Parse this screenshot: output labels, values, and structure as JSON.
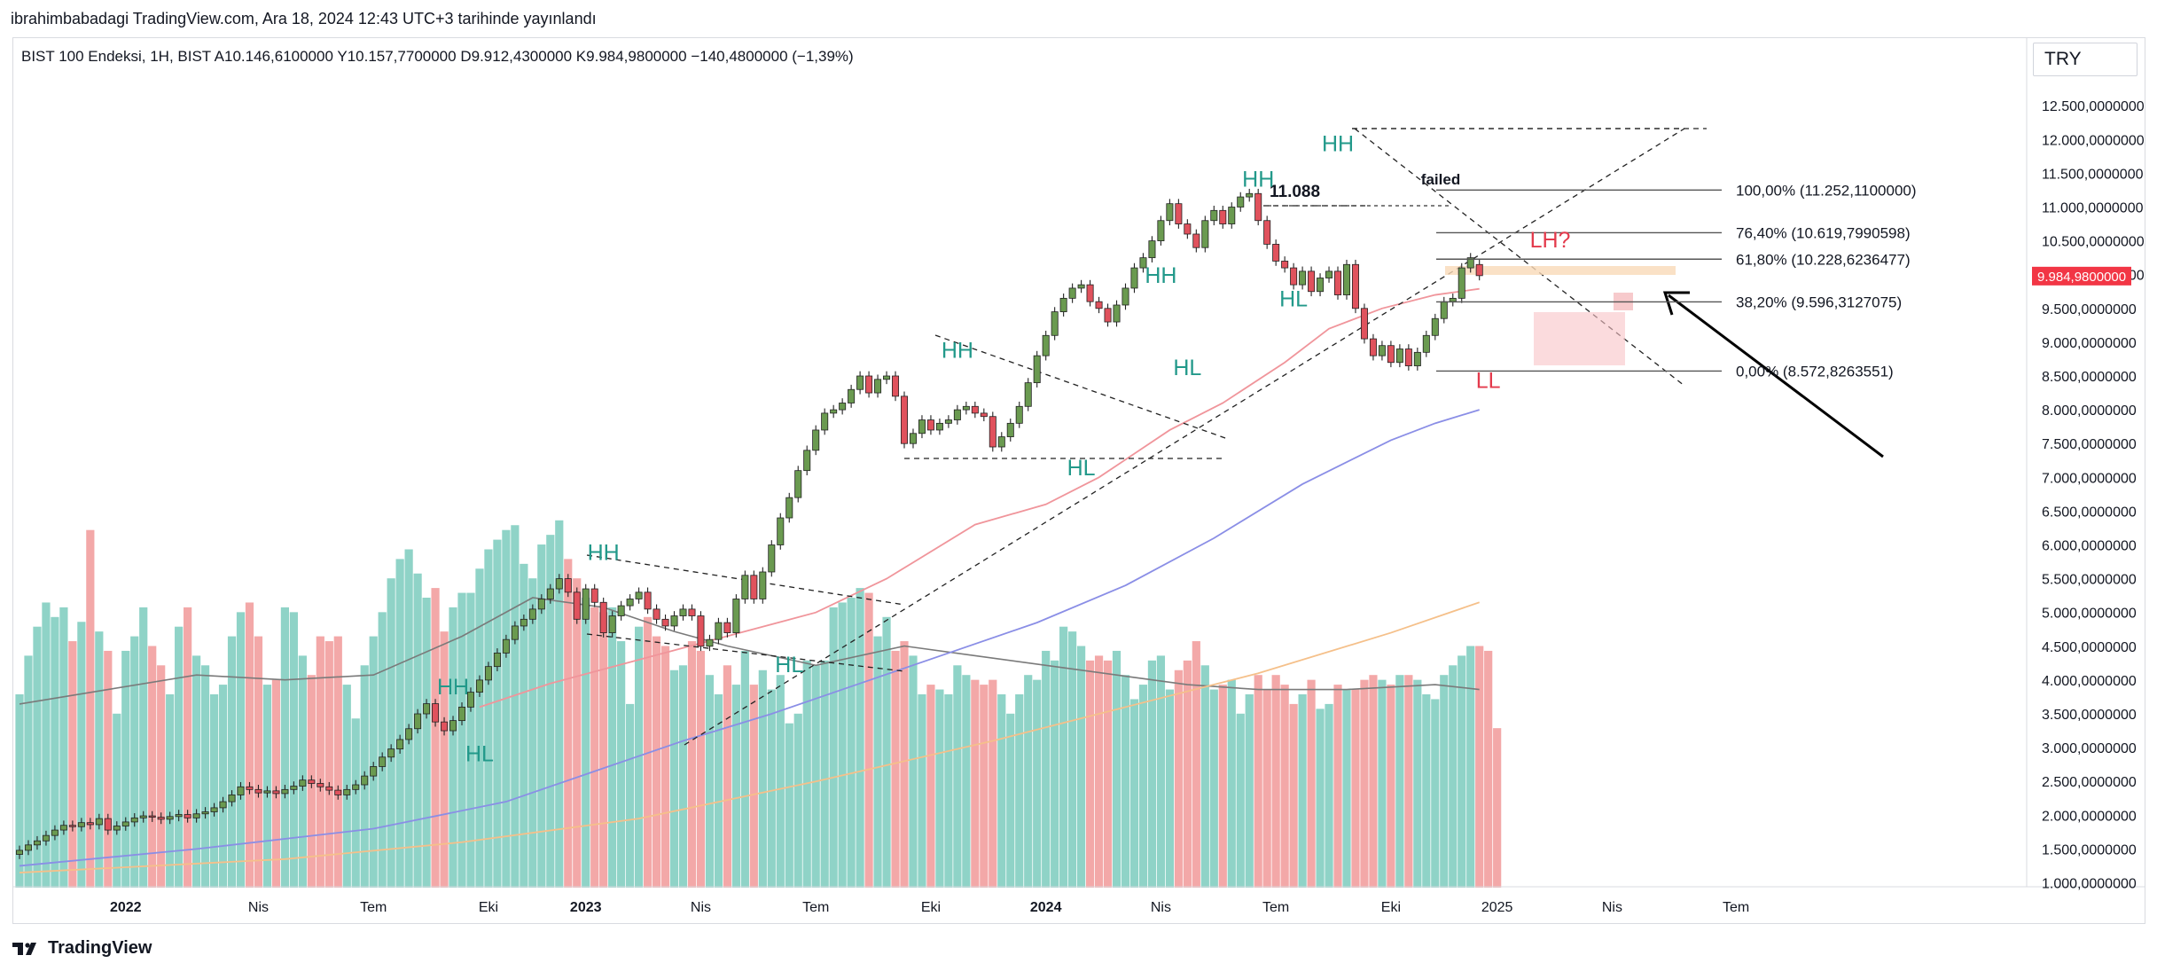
{
  "header": {
    "published": "ibrahimbabadagi TradingView.com, Ara 18, 2024 12:43 UTC+3 tarihinde yayınlandı"
  },
  "legend": {
    "symbol": "BIST 100 Endeksi, 1H, BIST",
    "open_label": "A",
    "open": "10.146,6100000",
    "high_label": "Y",
    "high": "10.157,7700000",
    "low_label": "D",
    "low": "9.912,4300000",
    "close_label": "K",
    "close": "9.984,9800000",
    "change": "−140,4800000 (−1,39%)"
  },
  "currency": "TRY",
  "footer": {
    "brand": "TradingView"
  },
  "colors": {
    "up": "#6a9a50",
    "down": "#e0525d",
    "vol_up": "#8fd3c7",
    "vol_down": "#f3a8a8",
    "ma_red": "#f0959b",
    "ma_blue": "#8a8ee6",
    "ma_orange": "#f5c08a",
    "vol_ma": "#7a7a7a",
    "teal_label": "#22998a",
    "red_label": "#e33a4c",
    "price_tag": "#f23645"
  },
  "chart_data": {
    "type": "candlestick",
    "symbol": "BIST 100 Endeksi",
    "interval": "1H",
    "ylim": [
      1000,
      12900
    ],
    "y_ticks": [
      "12.500,0000000",
      "12.000,0000000",
      "11.500,0000000",
      "11.000,0000000",
      "10.500,0000000",
      "10.000,0000000",
      "9.500,0000000",
      "9.000,0000000",
      "8.500,0000000",
      "8.000,0000000",
      "7.500,0000000",
      "7.000,0000000",
      "6.500,0000000",
      "6.000,0000000",
      "5.500,0000000",
      "5.000,0000000",
      "4.500,0000000",
      "4.000,0000000",
      "3.500,0000000",
      "3.000,0000000",
      "2.500,0000000",
      "2.000,0000000",
      "1.500,0000000",
      "1.000,0000000"
    ],
    "y_tick_values": [
      12500,
      12000,
      11500,
      11000,
      10500,
      10000,
      9500,
      9000,
      8500,
      8000,
      7500,
      7000,
      6500,
      6000,
      5500,
      5000,
      4500,
      4000,
      3500,
      3000,
      2500,
      2000,
      1500,
      1000
    ],
    "x_ticks": [
      "2022",
      "Nis",
      "Tem",
      "Eki",
      "2023",
      "Nis",
      "Tem",
      "Eki",
      "2024",
      "Nis",
      "Tem",
      "Eki",
      "2025",
      "Nis",
      "Tem"
    ],
    "x_tick_bold": [
      true,
      false,
      false,
      false,
      true,
      false,
      false,
      false,
      true,
      false,
      false,
      false,
      false,
      false,
      false
    ],
    "x_tick_weeks": [
      12,
      27,
      40,
      53,
      64,
      77,
      90,
      103,
      116,
      129,
      142,
      155,
      167,
      180,
      194
    ],
    "last_price": "9.984,9800000",
    "last_price_value": 9985,
    "candles": [
      [
        1420,
        1480
      ],
      [
        1480,
        1560
      ],
      [
        1560,
        1620
      ],
      [
        1620,
        1700
      ],
      [
        1700,
        1780
      ],
      [
        1780,
        1850
      ],
      [
        1850,
        1830
      ],
      [
        1830,
        1890
      ],
      [
        1890,
        1860
      ],
      [
        1860,
        1950
      ],
      [
        1950,
        1780
      ],
      [
        1780,
        1840
      ],
      [
        1840,
        1900
      ],
      [
        1900,
        1960
      ],
      [
        1960,
        1990
      ],
      [
        1990,
        1970
      ],
      [
        1970,
        1940
      ],
      [
        1940,
        1980
      ],
      [
        1980,
        2010
      ],
      [
        2010,
        1960
      ],
      [
        1960,
        2020
      ],
      [
        2020,
        2050
      ],
      [
        2050,
        2110
      ],
      [
        2110,
        2200
      ],
      [
        2200,
        2300
      ],
      [
        2300,
        2420
      ],
      [
        2420,
        2380
      ],
      [
        2380,
        2330
      ],
      [
        2330,
        2360
      ],
      [
        2360,
        2320
      ],
      [
        2320,
        2380
      ],
      [
        2380,
        2430
      ],
      [
        2430,
        2520
      ],
      [
        2520,
        2470
      ],
      [
        2470,
        2420
      ],
      [
        2420,
        2370
      ],
      [
        2370,
        2300
      ],
      [
        2300,
        2380
      ],
      [
        2380,
        2450
      ],
      [
        2450,
        2580
      ],
      [
        2580,
        2720
      ],
      [
        2720,
        2860
      ],
      [
        2860,
        2980
      ],
      [
        2980,
        3120
      ],
      [
        3120,
        3280
      ],
      [
        3280,
        3500
      ],
      [
        3500,
        3650
      ],
      [
        3650,
        3380
      ],
      [
        3380,
        3250
      ],
      [
        3250,
        3400
      ],
      [
        3400,
        3600
      ],
      [
        3600,
        3820
      ],
      [
        3820,
        4000
      ],
      [
        4000,
        4200
      ],
      [
        4200,
        4400
      ],
      [
        4400,
        4600
      ],
      [
        4600,
        4800
      ],
      [
        4800,
        4900
      ],
      [
        4900,
        5050
      ],
      [
        5050,
        5200
      ],
      [
        5200,
        5350
      ],
      [
        5350,
        5500
      ],
      [
        5500,
        5300
      ],
      [
        5300,
        4900
      ],
      [
        4900,
        5350
      ],
      [
        5350,
        5150
      ],
      [
        5150,
        4700
      ],
      [
        4700,
        4950
      ],
      [
        4950,
        5100
      ],
      [
        5100,
        5200
      ],
      [
        5200,
        5300
      ],
      [
        5300,
        5050
      ],
      [
        5050,
        4900
      ],
      [
        4900,
        4800
      ],
      [
        4800,
        4950
      ],
      [
        4950,
        5050
      ],
      [
        5050,
        4950
      ],
      [
        4950,
        4500
      ],
      [
        4500,
        4600
      ],
      [
        4600,
        4850
      ],
      [
        4850,
        4700
      ],
      [
        4700,
        5200
      ],
      [
        5200,
        5550
      ],
      [
        5550,
        5200
      ],
      [
        5200,
        5600
      ],
      [
        5600,
        6000
      ],
      [
        6000,
        6400
      ],
      [
        6400,
        6700
      ],
      [
        6700,
        7100
      ],
      [
        7100,
        7400
      ],
      [
        7400,
        7700
      ],
      [
        7700,
        7950
      ],
      [
        7950,
        8000
      ],
      [
        8000,
        8100
      ],
      [
        8100,
        8300
      ],
      [
        8300,
        8500
      ],
      [
        8500,
        8250
      ],
      [
        8250,
        8450
      ],
      [
        8450,
        8500
      ],
      [
        8500,
        8200
      ],
      [
        8200,
        7500
      ],
      [
        7500,
        7650
      ],
      [
        7650,
        7850
      ],
      [
        7850,
        7700
      ],
      [
        7700,
        7800
      ],
      [
        7800,
        7850
      ],
      [
        7850,
        8000
      ],
      [
        8000,
        8050
      ],
      [
        8050,
        7950
      ],
      [
        7950,
        7900
      ],
      [
        7900,
        7450
      ],
      [
        7450,
        7600
      ],
      [
        7600,
        7800
      ],
      [
        7800,
        8050
      ],
      [
        8050,
        8400
      ],
      [
        8400,
        8800
      ],
      [
        8800,
        9100
      ],
      [
        9100,
        9450
      ],
      [
        9450,
        9650
      ],
      [
        9650,
        9800
      ],
      [
        9800,
        9850
      ],
      [
        9850,
        9600
      ],
      [
        9600,
        9500
      ],
      [
        9500,
        9300
      ],
      [
        9300,
        9550
      ],
      [
        9550,
        9800
      ],
      [
        9800,
        10100
      ],
      [
        10100,
        10250
      ],
      [
        10250,
        10500
      ],
      [
        10500,
        10800
      ],
      [
        10800,
        11050
      ],
      [
        11050,
        10750
      ],
      [
        10750,
        10600
      ],
      [
        10600,
        10400
      ],
      [
        10400,
        10800
      ],
      [
        10800,
        10950
      ],
      [
        10950,
        10750
      ],
      [
        10750,
        11000
      ],
      [
        11000,
        11150
      ],
      [
        11150,
        11200
      ],
      [
        11200,
        10800
      ],
      [
        10800,
        10450
      ],
      [
        10450,
        10200
      ],
      [
        10200,
        10100
      ],
      [
        10100,
        9850
      ],
      [
        9850,
        10050
      ],
      [
        10050,
        9750
      ],
      [
        9750,
        9950
      ],
      [
        9950,
        10050
      ],
      [
        10050,
        9700
      ],
      [
        9700,
        10150
      ],
      [
        10150,
        9500
      ],
      [
        9500,
        9050
      ],
      [
        9050,
        8800
      ],
      [
        8800,
        8950
      ],
      [
        8950,
        8700
      ],
      [
        8700,
        8900
      ],
      [
        8900,
        8650
      ],
      [
        8650,
        8850
      ],
      [
        8850,
        9100
      ],
      [
        9100,
        9350
      ],
      [
        9350,
        9600
      ],
      [
        9600,
        9650
      ],
      [
        9650,
        10100
      ],
      [
        10100,
        10250
      ],
      [
        10150,
        9985
      ]
    ],
    "volume_values": [
      2000,
      2400,
      2700,
      2950,
      2800,
      2900,
      2550,
      2750,
      3700,
      2650,
      2450,
      1800,
      2450,
      2600,
      2900,
      2500,
      2300,
      2000,
      2700,
      2900,
      2400,
      2300,
      2000,
      2100,
      2600,
      2850,
      2950,
      2600,
      2100,
      2150,
      2900,
      2850,
      2400,
      2200,
      2600,
      2550,
      2600,
      2100,
      1750,
      2300,
      2600,
      2850,
      3200,
      3400,
      3500,
      3250,
      3000,
      3100,
      2650,
      2900,
      3050,
      3050,
      3300,
      3500,
      3600,
      3700,
      3750,
      3350,
      3200,
      3550,
      3650,
      3800,
      3400,
      3200,
      3000,
      2900,
      2850,
      2900,
      2550,
      1900,
      2700,
      2800,
      2600,
      2500,
      2250,
      2300,
      2550,
      2450,
      2200,
      2000,
      2300,
      2100,
      2450,
      2100,
      2250,
      2050,
      2200,
      1700,
      1800,
      2350,
      2300,
      2350,
      2900,
      2950,
      3000,
      3100,
      3050,
      2600,
      2800,
      2450,
      2550,
      2400,
      2000,
      2100,
      2050,
      2000,
      2300,
      2200,
      2150,
      2100,
      2150,
      2000,
      1800,
      2000,
      2200,
      2150,
      2450,
      2350,
      2700,
      2650,
      2500,
      2350,
      2400,
      2350,
      2450,
      2200,
      1950,
      2100,
      2350,
      2400,
      2050,
      2250,
      2350,
      2550,
      2300,
      2050,
      2100,
      2150,
      1800,
      2000,
      2200,
      2050,
      2200,
      2100,
      1900,
      2000,
      2150,
      1850,
      1900,
      2100,
      2050,
      2050,
      2150,
      2200,
      2150,
      2100,
      2200,
      2200,
      2150,
      2000,
      1950,
      2200,
      2300,
      2400,
      2500,
      2500,
      2450,
      1650
    ],
    "ma_red": [
      [
        52,
        3600
      ],
      [
        60,
        3950
      ],
      [
        70,
        4300
      ],
      [
        80,
        4650
      ],
      [
        90,
        5000
      ],
      [
        98,
        5500
      ],
      [
        108,
        6300
      ],
      [
        116,
        6600
      ],
      [
        122,
        7000
      ],
      [
        130,
        7700
      ],
      [
        136,
        8100
      ],
      [
        143,
        8700
      ],
      [
        148,
        9200
      ],
      [
        154,
        9500
      ],
      [
        160,
        9700
      ],
      [
        165,
        9790
      ]
    ],
    "ma_blue": [
      [
        0,
        1250
      ],
      [
        20,
        1500
      ],
      [
        40,
        1800
      ],
      [
        55,
        2200
      ],
      [
        65,
        2650
      ],
      [
        75,
        3100
      ],
      [
        85,
        3500
      ],
      [
        95,
        3950
      ],
      [
        105,
        4400
      ],
      [
        115,
        4850
      ],
      [
        125,
        5400
      ],
      [
        135,
        6100
      ],
      [
        145,
        6900
      ],
      [
        155,
        7550
      ],
      [
        160,
        7800
      ],
      [
        165,
        8000
      ]
    ],
    "ma_orange": [
      [
        0,
        1150
      ],
      [
        30,
        1350
      ],
      [
        50,
        1600
      ],
      [
        70,
        1950
      ],
      [
        90,
        2500
      ],
      [
        110,
        3100
      ],
      [
        125,
        3600
      ],
      [
        140,
        4100
      ],
      [
        155,
        4700
      ],
      [
        165,
        5150
      ]
    ],
    "vol_ma": [
      [
        0,
        1900
      ],
      [
        10,
        2050
      ],
      [
        20,
        2200
      ],
      [
        30,
        2150
      ],
      [
        40,
        2200
      ],
      [
        50,
        2600
      ],
      [
        58,
        3000
      ],
      [
        66,
        2900
      ],
      [
        74,
        2650
      ],
      [
        80,
        2500
      ],
      [
        90,
        2300
      ],
      [
        100,
        2500
      ],
      [
        108,
        2400
      ],
      [
        116,
        2300
      ],
      [
        124,
        2200
      ],
      [
        132,
        2100
      ],
      [
        140,
        2050
      ],
      [
        150,
        2050
      ],
      [
        160,
        2100
      ],
      [
        165,
        2050
      ]
    ],
    "fibonacci": [
      {
        "label": "100,00% (11.252,1100000)",
        "value": 11252
      },
      {
        "label": "76,40% (10.619,7990598)",
        "value": 10620
      },
      {
        "label": "61,80% (10.228,6236477)",
        "value": 10229
      },
      {
        "label": "38,20% (9.596,3127075)",
        "value": 9596
      },
      {
        "label": "0,00% (8.572,8263551)",
        "value": 8573
      }
    ],
    "level_label": "11.088",
    "annotations": [
      {
        "text": "HH",
        "color": "teal",
        "week": 49,
        "value": 3790
      },
      {
        "text": "HL",
        "color": "teal",
        "week": 52,
        "value": 2800
      },
      {
        "text": "HH",
        "color": "teal",
        "week": 66,
        "value": 5780
      },
      {
        "text": "HL",
        "color": "teal",
        "week": 87,
        "value": 4120
      },
      {
        "text": "HH",
        "color": "teal",
        "week": 106,
        "value": 8770
      },
      {
        "text": "HL",
        "color": "teal",
        "week": 120,
        "value": 7030
      },
      {
        "text": "HH",
        "color": "teal",
        "week": 129,
        "value": 9880
      },
      {
        "text": "HL",
        "color": "teal",
        "week": 132,
        "value": 8510
      },
      {
        "text": "HH",
        "color": "teal",
        "week": 140,
        "value": 11300
      },
      {
        "text": "HL",
        "color": "teal",
        "week": 144,
        "value": 9530
      },
      {
        "text": "HH",
        "color": "teal",
        "week": 149,
        "value": 11830
      },
      {
        "text": "LL",
        "color": "red",
        "week": 166,
        "value": 8320
      },
      {
        "text": "LH?",
        "color": "red",
        "week": 173,
        "value": 10400
      }
    ],
    "failed_text": "failed"
  }
}
